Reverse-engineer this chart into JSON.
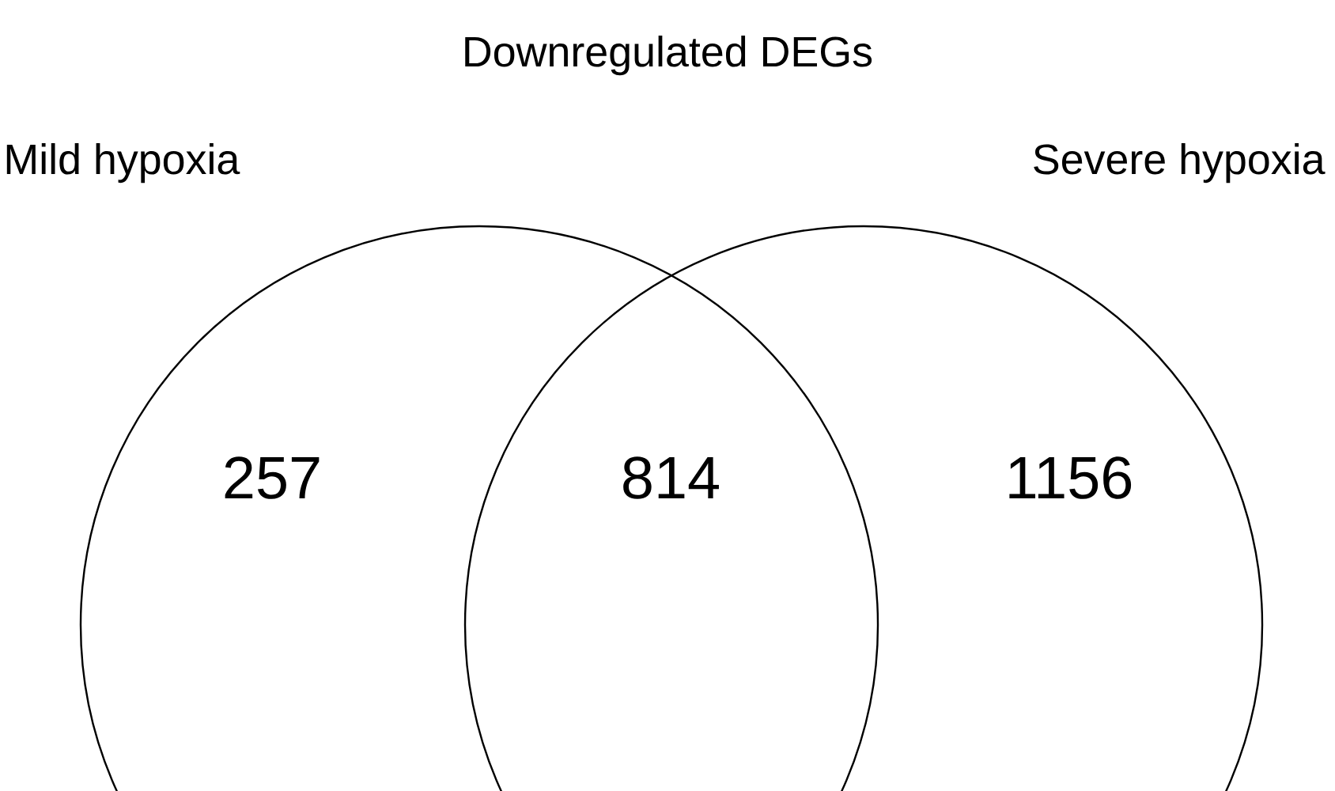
{
  "chart_data": {
    "type": "other",
    "title": "Downregulated DEGs",
    "annotations": [
      "Mild hypoxia",
      "Severe hypoxia"
    ],
    "categories": [
      null,
      null,
      null
    ],
    "values": [
      257,
      814,
      1156
    ],
    "color": "#000000",
    "data_labels": true
  }
}
